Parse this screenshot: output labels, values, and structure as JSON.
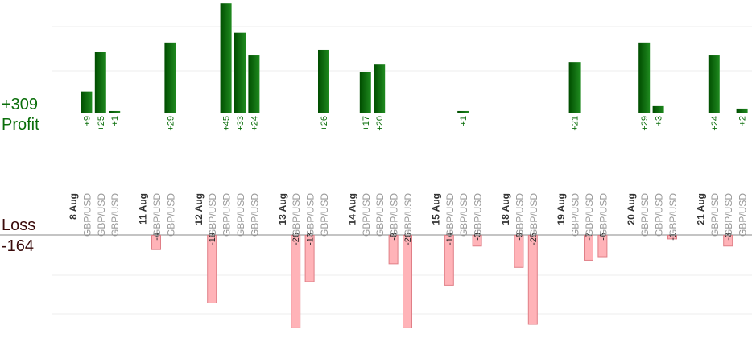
{
  "summary": {
    "total_profit": "+309",
    "profit_label": "Profit",
    "loss_label": "Loss",
    "total_loss": "-164"
  },
  "colors": {
    "profit_dark": "#004d00",
    "profit_light": "#1f8a1f",
    "profit_text": "#0a6e0a",
    "loss_fill": "#ffb3b8",
    "loss_stroke": "#e07f87",
    "loss_text": "#3a0a0a",
    "date_text": "#333333",
    "pair_text": "#999999",
    "grid": "#eeeeee"
  },
  "chart_data": {
    "type": "bar",
    "title": "",
    "xlabel": "",
    "ylabel": "",
    "grid": true,
    "days": [
      {
        "date": "8 Aug",
        "trades": [
          {
            "pair": "GBP/USD",
            "value": 9
          },
          {
            "pair": "GBP/USD",
            "value": 25
          },
          {
            "pair": "GBP/USD",
            "value": 1
          }
        ]
      },
      {
        "date": "11 Aug",
        "trades": [
          {
            "pair": "GBP/USD",
            "value": -4
          },
          {
            "pair": "GBP/USD",
            "value": 29
          }
        ]
      },
      {
        "date": "12 Aug",
        "trades": [
          {
            "pair": "GBP/USD",
            "value": -19
          },
          {
            "pair": "GBP/USD",
            "value": 45
          },
          {
            "pair": "GBP/USD",
            "value": 33
          },
          {
            "pair": "GBP/USD",
            "value": 24
          }
        ]
      },
      {
        "date": "13 Aug",
        "trades": [
          {
            "pair": "GBP/USD",
            "value": -26
          },
          {
            "pair": "GBP/USD",
            "value": -13
          },
          {
            "pair": "GBP/USD",
            "value": 26
          }
        ]
      },
      {
        "date": "14 Aug",
        "trades": [
          {
            "pair": "GBP/USD",
            "value": 17
          },
          {
            "pair": "GBP/USD",
            "value": 20
          },
          {
            "pair": "GBP/USD",
            "value": -8
          },
          {
            "pair": "GBP/USD",
            "value": -26
          }
        ]
      },
      {
        "date": "15 Aug",
        "trades": [
          {
            "pair": "GBP/USD",
            "value": -14
          },
          {
            "pair": "GBP/USD",
            "value": 1
          },
          {
            "pair": "GBP/USD",
            "value": -3
          }
        ]
      },
      {
        "date": "18 Aug",
        "trades": [
          {
            "pair": "GBP/USD",
            "value": -9
          },
          {
            "pair": "GBP/USD",
            "value": -25
          }
        ]
      },
      {
        "date": "19 Aug",
        "trades": [
          {
            "pair": "GBP/USD",
            "value": 21
          },
          {
            "pair": "GBP/USD",
            "value": -7
          },
          {
            "pair": "GBP/USD",
            "value": -6
          }
        ]
      },
      {
        "date": "20 Aug",
        "trades": [
          {
            "pair": "GBP/USD",
            "value": 29
          },
          {
            "pair": "GBP/USD",
            "value": 3
          },
          {
            "pair": "GBP/USD",
            "value": -1
          }
        ]
      },
      {
        "date": "21 Aug",
        "trades": [
          {
            "pair": "GBP/USD",
            "value": 24
          },
          {
            "pair": "GBP/USD",
            "value": -3
          },
          {
            "pair": "GBP/USD",
            "value": 2
          }
        ]
      }
    ]
  }
}
